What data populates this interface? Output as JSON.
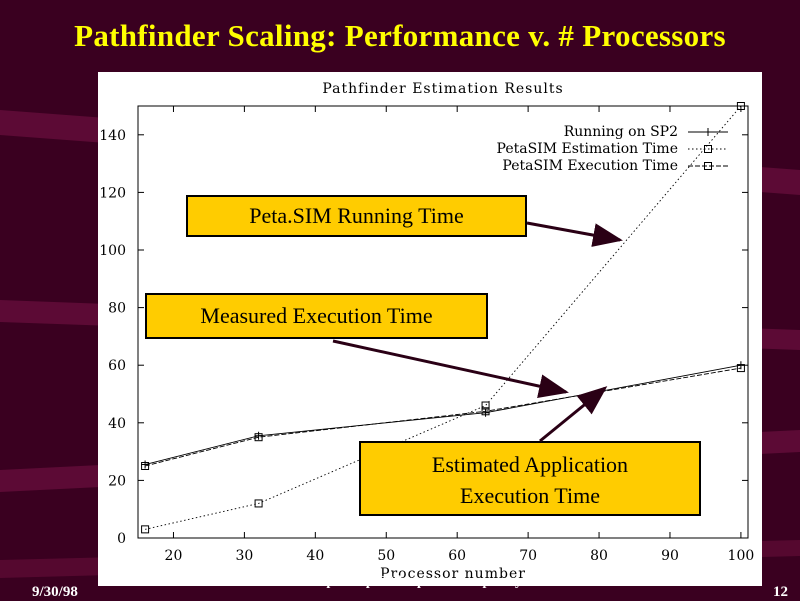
{
  "slide": {
    "title": "Pathfinder Scaling: Performance v. # Processors",
    "footer_date": "9/30/98",
    "footer_center": "nasaamesperfsept98    http://www.npac.syr.edu",
    "page_number": "12",
    "colors": {
      "background": "#3a0020",
      "title": "#ffff00",
      "callout_fill": "#ffcc00",
      "arrow": "#2a0015"
    }
  },
  "callouts": {
    "petasim_running": "Peta.SIM Running Time",
    "measured_execution": "Measured Execution Time",
    "estimated_line1": "Estimated Application",
    "estimated_line2": "Execution Time"
  },
  "chart_data": {
    "type": "line",
    "title": "Pathfinder Estimation Results",
    "xlabel": "Processor number",
    "ylabel": "",
    "xlim": [
      15,
      101
    ],
    "ylim": [
      0,
      150
    ],
    "xticks": [
      20,
      30,
      40,
      50,
      60,
      70,
      80,
      90,
      100
    ],
    "yticks": [
      0,
      20,
      40,
      60,
      80,
      100,
      120,
      140
    ],
    "grid": false,
    "legend_position": "top-right",
    "series": [
      {
        "name": "Running on SP2",
        "marker": "plus",
        "x": [
          16,
          32,
          64,
          100
        ],
        "y": [
          25.5,
          35.5,
          43.5,
          60
        ]
      },
      {
        "name": "PetaSIM Estimation Time",
        "marker": "square",
        "x": [
          16,
          32,
          64,
          100
        ],
        "y": [
          3,
          12,
          46,
          150
        ]
      },
      {
        "name": "PetaSIM Execution Time",
        "marker": "square",
        "x": [
          16,
          32,
          64,
          100
        ],
        "y": [
          25,
          35,
          44,
          59
        ]
      }
    ]
  }
}
